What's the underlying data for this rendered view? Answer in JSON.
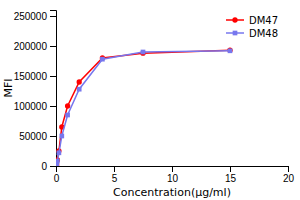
{
  "chart_data": {
    "type": "line",
    "xlabel": "Concentration(μg/ml)",
    "ylabel": "MFI",
    "x": [
      0.06,
      0.12,
      0.25,
      0.5,
      1.0,
      2.0,
      4.0,
      7.5,
      15.0
    ],
    "series": [
      {
        "name": "DM47",
        "color": "#FF0000",
        "marker": "circle",
        "values": [
          2000,
          10000,
          25000,
          65000,
          100000,
          140000,
          180000,
          188000,
          193000
        ]
      },
      {
        "name": "DM48",
        "color": "#7777EE",
        "marker": "square",
        "values": [
          1000,
          8000,
          22000,
          50000,
          85000,
          128000,
          178000,
          190000,
          192000
        ]
      }
    ],
    "xlim": [
      0,
      20
    ],
    "ylim": [
      0,
      260000
    ],
    "xticks": [
      0,
      5,
      10,
      15,
      20
    ],
    "yticks": [
      0,
      50000,
      100000,
      150000,
      200000,
      250000
    ],
    "grid": false,
    "legend": "upper right"
  }
}
